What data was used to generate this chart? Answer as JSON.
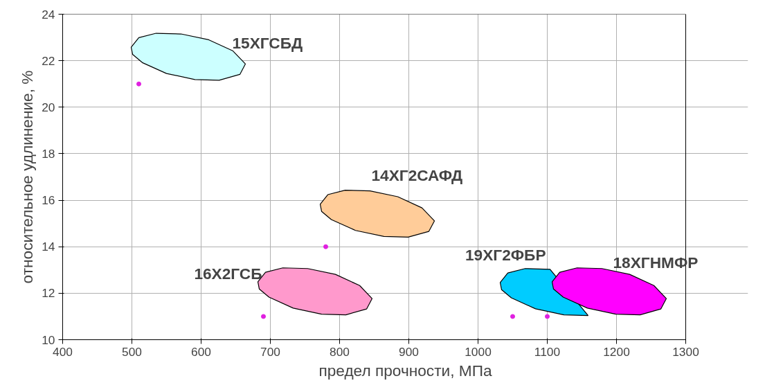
{
  "chart_data": {
    "type": "scatter",
    "xlabel": "предел прочности, МПа",
    "ylabel": "относительное удлинение, %",
    "xlim": [
      400,
      1300
    ],
    "xticks": [
      400,
      500,
      600,
      700,
      800,
      900,
      1000,
      1100,
      1200,
      1300
    ],
    "ylim": [
      10,
      24
    ],
    "yticks": [
      10,
      12,
      14,
      16,
      18,
      20,
      22,
      24
    ],
    "grid": true,
    "series": [
      {
        "type": "area",
        "name": "15ХГСБД",
        "color": "#ccffff",
        "x": [
          499,
          510,
          535,
          571,
          611,
          646,
          664,
          656,
          626,
          591,
          550,
          515,
          501
        ],
        "values": [
          22.58,
          22.99,
          23.18,
          23.15,
          22.9,
          22.42,
          21.86,
          21.41,
          21.16,
          21.19,
          21.45,
          21.92,
          22.27
        ]
      },
      {
        "type": "area",
        "name": "14ХГ2САФД",
        "color": "#ffcc99",
        "x": [
          772,
          783,
          808,
          844,
          884,
          919,
          937,
          929,
          899,
          864,
          823,
          788,
          774
        ],
        "values": [
          15.83,
          16.24,
          16.43,
          16.4,
          16.15,
          15.67,
          15.11,
          14.66,
          14.41,
          14.44,
          14.7,
          15.17,
          15.52
        ]
      },
      {
        "type": "area",
        "name": "16Х2ГСБ",
        "color": "#ff99cc",
        "x": [
          682,
          693,
          718,
          754,
          794,
          829,
          847,
          839,
          809,
          774,
          733,
          698,
          684
        ],
        "values": [
          12.49,
          12.9,
          13.09,
          13.06,
          12.81,
          12.33,
          11.77,
          11.32,
          11.07,
          11.1,
          11.36,
          11.83,
          12.18
        ]
      },
      {
        "type": "area",
        "name": "19ХГ2ФБР",
        "color": "#00ccff",
        "x": [
          1032,
          1043,
          1068,
          1104,
          null,
          null,
          null,
          null,
          1159,
          1124,
          1083,
          1048,
          1034
        ],
        "values": [
          12.46,
          12.87,
          13.06,
          13.03,
          null,
          null,
          null,
          null,
          11.04,
          11.07,
          11.33,
          11.8,
          12.15
        ]
      },
      {
        "type": "area",
        "name": "18ХГНМФР",
        "color": "#ff00ff",
        "x": [
          1107,
          1118,
          1143,
          1179,
          1219,
          1254,
          1272,
          1264,
          1234,
          1199,
          1158,
          1123,
          1109
        ],
        "values": [
          12.49,
          12.9,
          13.09,
          13.06,
          12.81,
          12.33,
          11.77,
          11.32,
          11.07,
          11.1,
          11.36,
          11.83,
          12.18
        ]
      },
      {
        "color": "#e020e0",
        "marker": "circle",
        "x": [
          510,
          780,
          690,
          1050,
          1100
        ],
        "values": [
          21,
          14,
          11,
          11,
          11
        ]
      }
    ]
  }
}
